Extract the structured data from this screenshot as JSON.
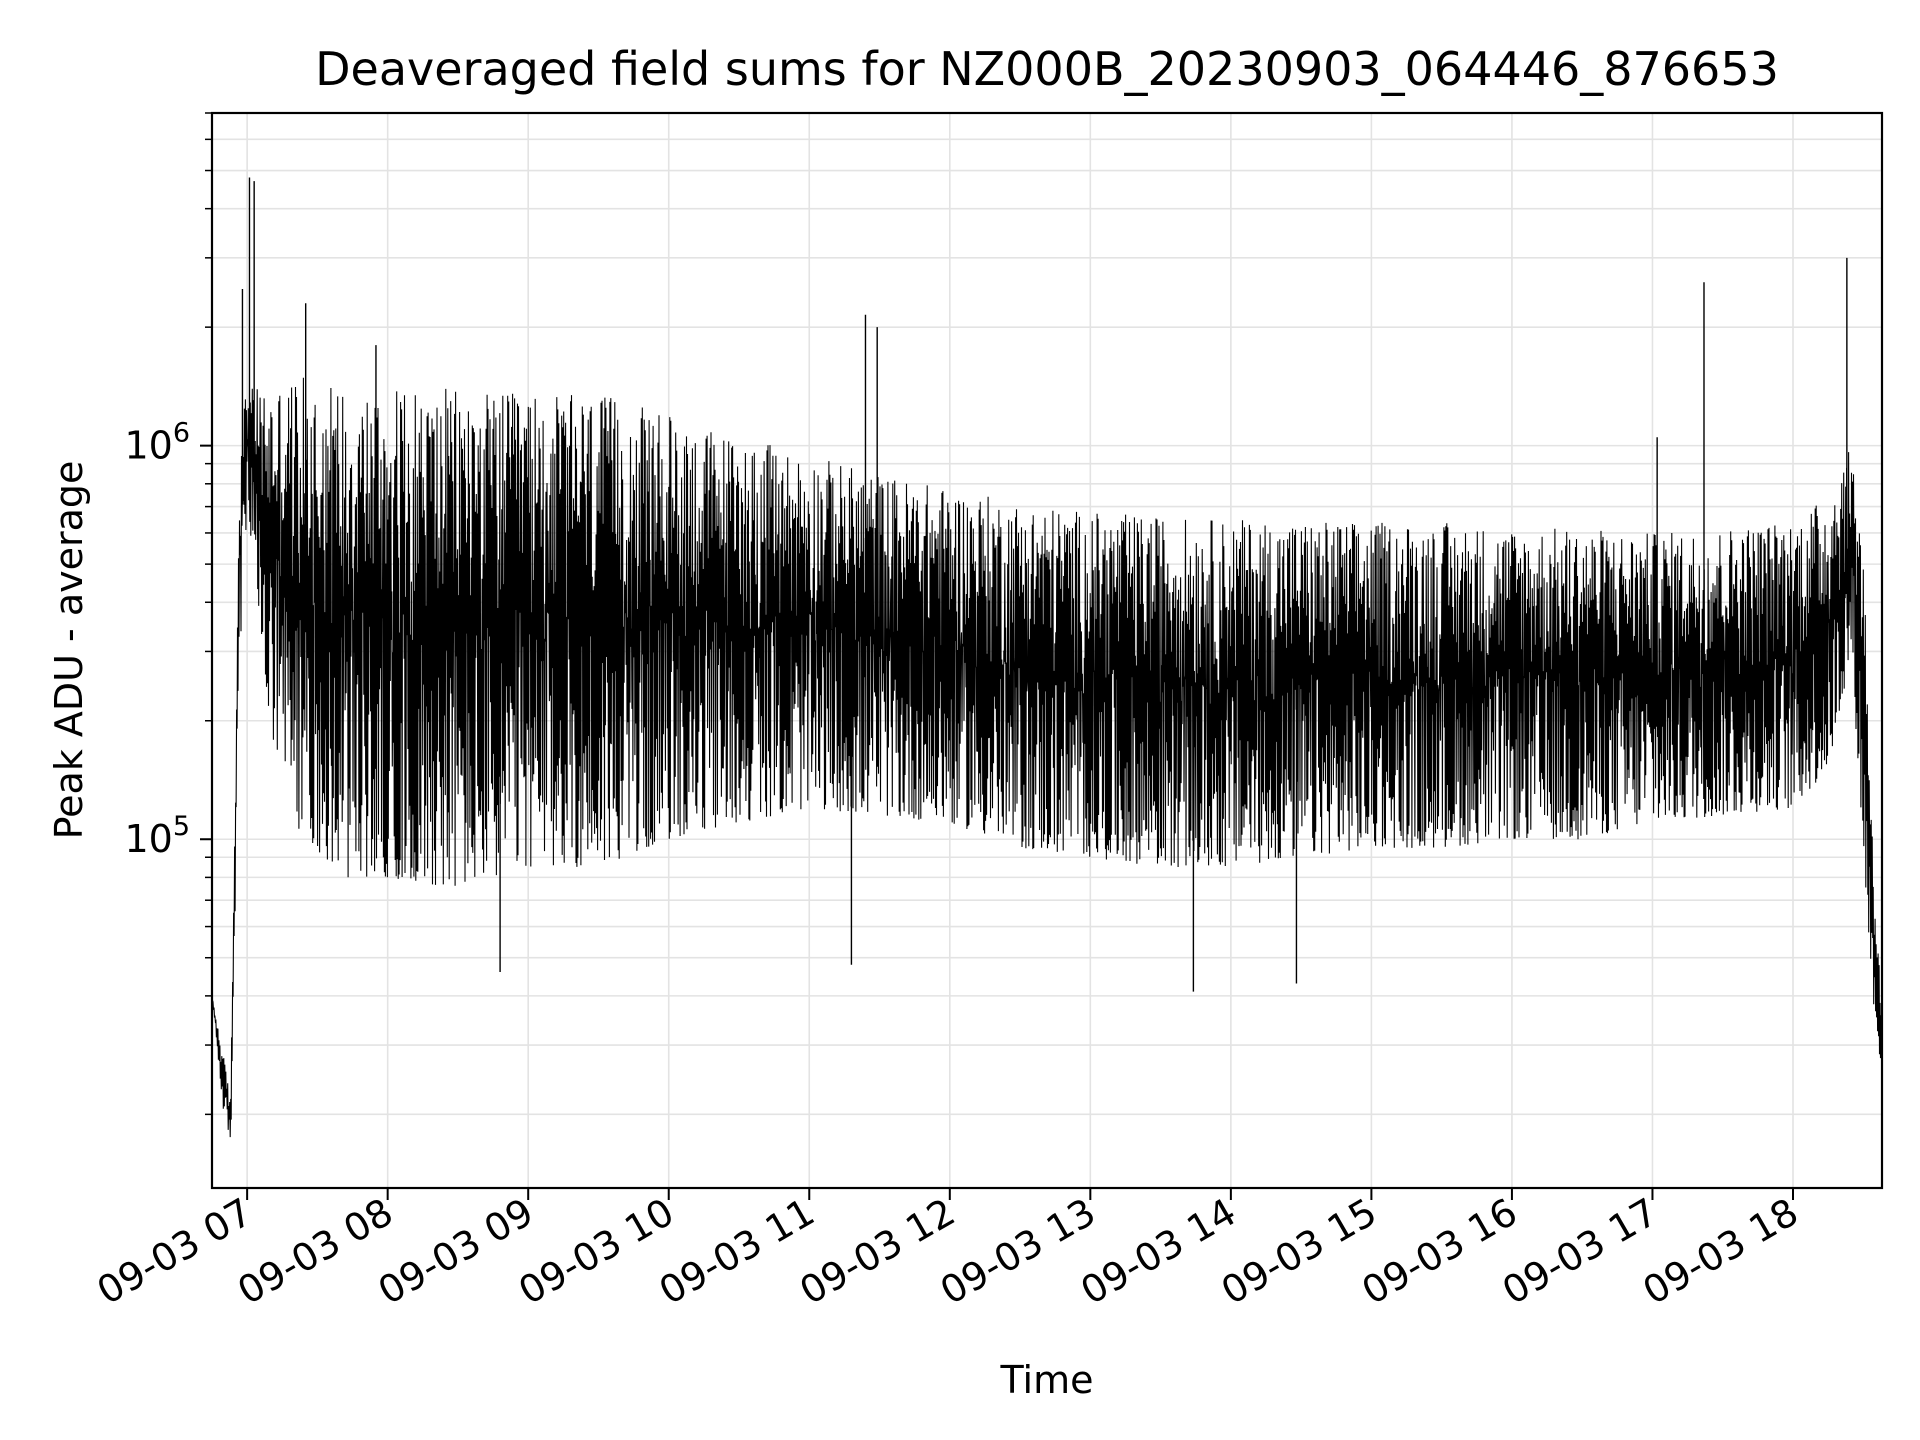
{
  "chart_data": {
    "type": "line",
    "title": "Deaveraged field sums for NZ000B_20230903_064446_876653",
    "xlabel": "Time",
    "ylabel": "Peak ADU - average",
    "yscale": "log",
    "ylim": [
      13000,
      7000000
    ],
    "xlim": [
      "2023-09-03 06:45",
      "2023-09-03 18:38"
    ],
    "grid": true,
    "line_color": "#000000",
    "x_tick_labels": [
      "09-03 07",
      "09-03 08",
      "09-03 09",
      "09-03 10",
      "09-03 11",
      "09-03 12",
      "09-03 13",
      "09-03 14",
      "09-03 15",
      "09-03 16",
      "09-03 17",
      "09-03 18"
    ],
    "x_tick_times": [
      "2023-09-03 07:00",
      "2023-09-03 08:00",
      "2023-09-03 09:00",
      "2023-09-03 10:00",
      "2023-09-03 11:00",
      "2023-09-03 12:00",
      "2023-09-03 13:00",
      "2023-09-03 14:00",
      "2023-09-03 15:00",
      "2023-09-03 16:00",
      "2023-09-03 17:00",
      "2023-09-03 18:00"
    ],
    "y_tick_labels": [
      {
        "base": "10",
        "exp": "5",
        "value": 100000
      },
      {
        "base": "10",
        "exp": "6",
        "value": 1000000
      }
    ],
    "envelope": {
      "time": [
        "2023-09-03 06:45",
        "2023-09-03 06:50",
        "2023-09-03 06:53",
        "2023-09-03 06:57",
        "2023-09-03 07:00",
        "2023-09-03 07:10",
        "2023-09-03 07:20",
        "2023-09-03 07:40",
        "2023-09-03 08:00",
        "2023-09-03 08:30",
        "2023-09-03 09:00",
        "2023-09-03 09:30",
        "2023-09-03 10:00",
        "2023-09-03 10:30",
        "2023-09-03 11:00",
        "2023-09-03 11:30",
        "2023-09-03 12:00",
        "2023-09-03 12:30",
        "2023-09-03 13:00",
        "2023-09-03 13:30",
        "2023-09-03 14:00",
        "2023-09-03 14:30",
        "2023-09-03 15:00",
        "2023-09-03 15:30",
        "2023-09-03 16:00",
        "2023-09-03 16:30",
        "2023-09-03 17:00",
        "2023-09-03 17:30",
        "2023-09-03 18:00",
        "2023-09-03 18:15",
        "2023-09-03 18:25",
        "2023-09-03 18:30",
        "2023-09-03 18:34",
        "2023-09-03 18:38"
      ],
      "low": [
        40000,
        20000,
        17000,
        300000,
        700000,
        180000,
        110000,
        80000,
        80000,
        75000,
        85000,
        85000,
        100000,
        110000,
        120000,
        115000,
        110000,
        95000,
        90000,
        85000,
        85000,
        90000,
        95000,
        95000,
        100000,
        100000,
        110000,
        115000,
        120000,
        150000,
        300000,
        90000,
        40000,
        25000
      ],
      "high": [
        40000,
        28000,
        22000,
        1200000,
        1400000,
        1400000,
        1500000,
        1450000,
        1400000,
        1400000,
        1350000,
        1350000,
        1200000,
        1050000,
        950000,
        850000,
        780000,
        720000,
        680000,
        660000,
        650000,
        650000,
        640000,
        640000,
        620000,
        620000,
        600000,
        620000,
        650000,
        750000,
        1000000,
        600000,
        100000,
        35000
      ]
    },
    "spikes": [
      {
        "time": "2023-09-03 07:01",
        "value": 4800000
      },
      {
        "time": "2023-09-03 07:03",
        "value": 4700000
      },
      {
        "time": "2023-09-03 06:58",
        "value": 2500000
      },
      {
        "time": "2023-09-03 07:25",
        "value": 2300000
      },
      {
        "time": "2023-09-03 07:55",
        "value": 1800000
      },
      {
        "time": "2023-09-03 11:24",
        "value": 2150000
      },
      {
        "time": "2023-09-03 11:29",
        "value": 2000000
      },
      {
        "time": "2023-09-03 17:22",
        "value": 2600000
      },
      {
        "time": "2023-09-03 18:23",
        "value": 3000000
      },
      {
        "time": "2023-09-03 17:02",
        "value": 1050000
      },
      {
        "time": "2023-09-03 14:28",
        "value": 43000
      },
      {
        "time": "2023-09-03 13:44",
        "value": 41000
      },
      {
        "time": "2023-09-03 08:48",
        "value": 46000
      },
      {
        "time": "2023-09-03 11:18",
        "value": 48000
      }
    ]
  }
}
